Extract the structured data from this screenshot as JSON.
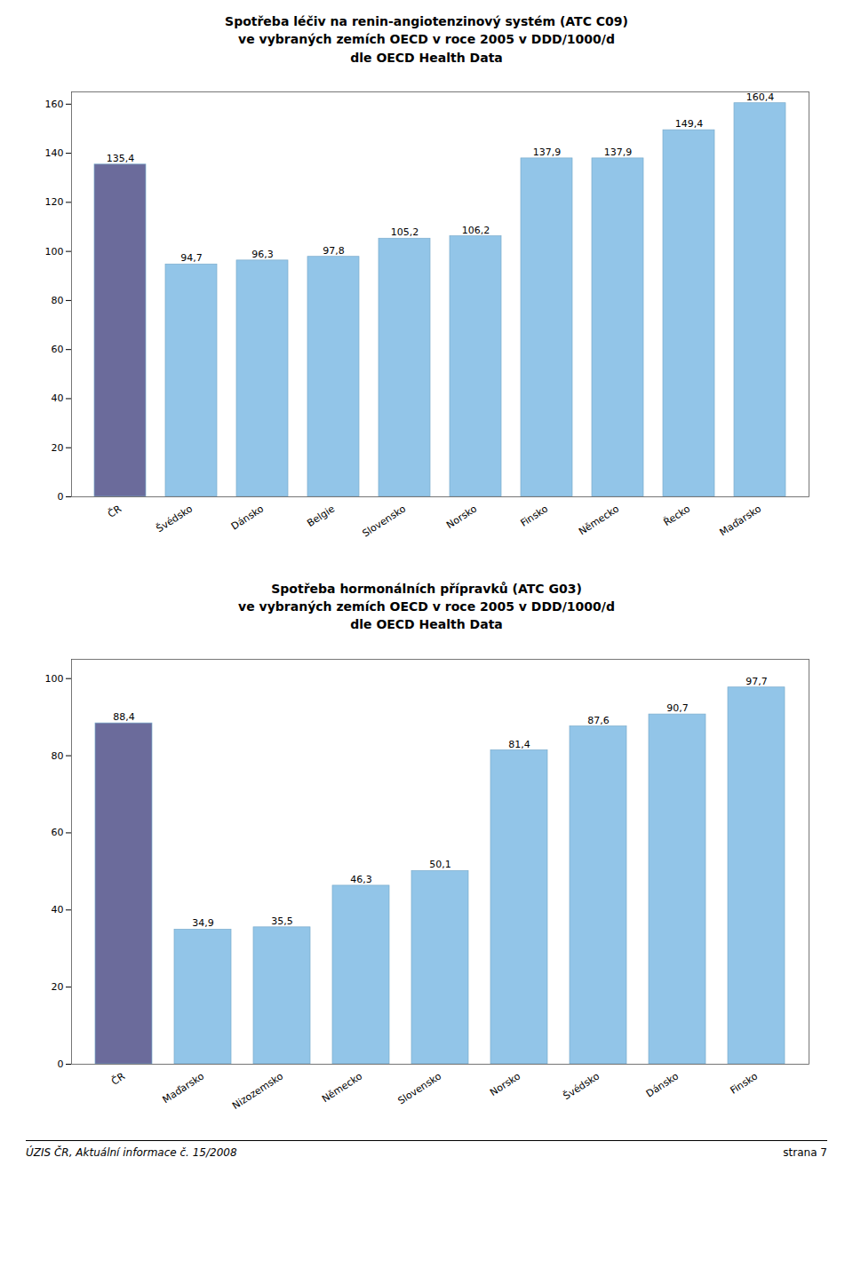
{
  "chart_data": [
    {
      "type": "bar",
      "title": "Spotřeba léčiv na renin-angiotenzinový systém (ATC C09)\nve vybraných zemích OECD v roce 2005 v DDD/1000/d\ndle OECD Health Data",
      "categories": [
        "ČR",
        "Švédsko",
        "Dánsko",
        "Belgie",
        "Slovensko",
        "Norsko",
        "Finsko",
        "Německo",
        "Řecko",
        "Maďarsko"
      ],
      "values": [
        135.4,
        94.7,
        96.3,
        97.8,
        105.2,
        106.2,
        137.9,
        137.9,
        149.4,
        160.4
      ],
      "value_labels": [
        "135,4",
        "94,7",
        "96,3",
        "97,8",
        "105,2",
        "106,2",
        "137,9",
        "137,9",
        "149,4",
        "160,4"
      ],
      "colors": [
        "#6b6b9b",
        "#92c5e8",
        "#92c5e8",
        "#92c5e8",
        "#92c5e8",
        "#92c5e8",
        "#92c5e8",
        "#92c5e8",
        "#92c5e8",
        "#92c5e8"
      ],
      "ylim": [
        0,
        165
      ],
      "yticks": [
        0,
        20,
        40,
        60,
        80,
        100,
        120,
        140,
        160
      ],
      "data_labels": true,
      "grid": false
    },
    {
      "type": "bar",
      "title": "Spotřeba hormonálních přípravků (ATC G03)\nve vybraných zemích OECD v roce 2005 v DDD/1000/d\ndle OECD Health Data",
      "categories": [
        "ČR",
        "Maďarsko",
        "Nizozemsko",
        "Německo",
        "Slovensko",
        "Norsko",
        "Švédsko",
        "Dánsko",
        "Finsko"
      ],
      "values": [
        88.4,
        34.9,
        35.5,
        46.3,
        50.1,
        81.4,
        87.6,
        90.7,
        97.7
      ],
      "value_labels": [
        "88,4",
        "34,9",
        "35,5",
        "46,3",
        "50,1",
        "81,4",
        "87,6",
        "90,7",
        "97,7"
      ],
      "colors": [
        "#6b6b9b",
        "#92c5e8",
        "#92c5e8",
        "#92c5e8",
        "#92c5e8",
        "#92c5e8",
        "#92c5e8",
        "#92c5e8",
        "#92c5e8"
      ],
      "ylim": [
        0,
        105
      ],
      "yticks": [
        0,
        20,
        40,
        60,
        80,
        100
      ],
      "data_labels": true,
      "grid": false
    }
  ],
  "annotations": [
    "ÚZIS ČR, Aktuální informace č. 15/2008",
    "strana 7"
  ]
}
